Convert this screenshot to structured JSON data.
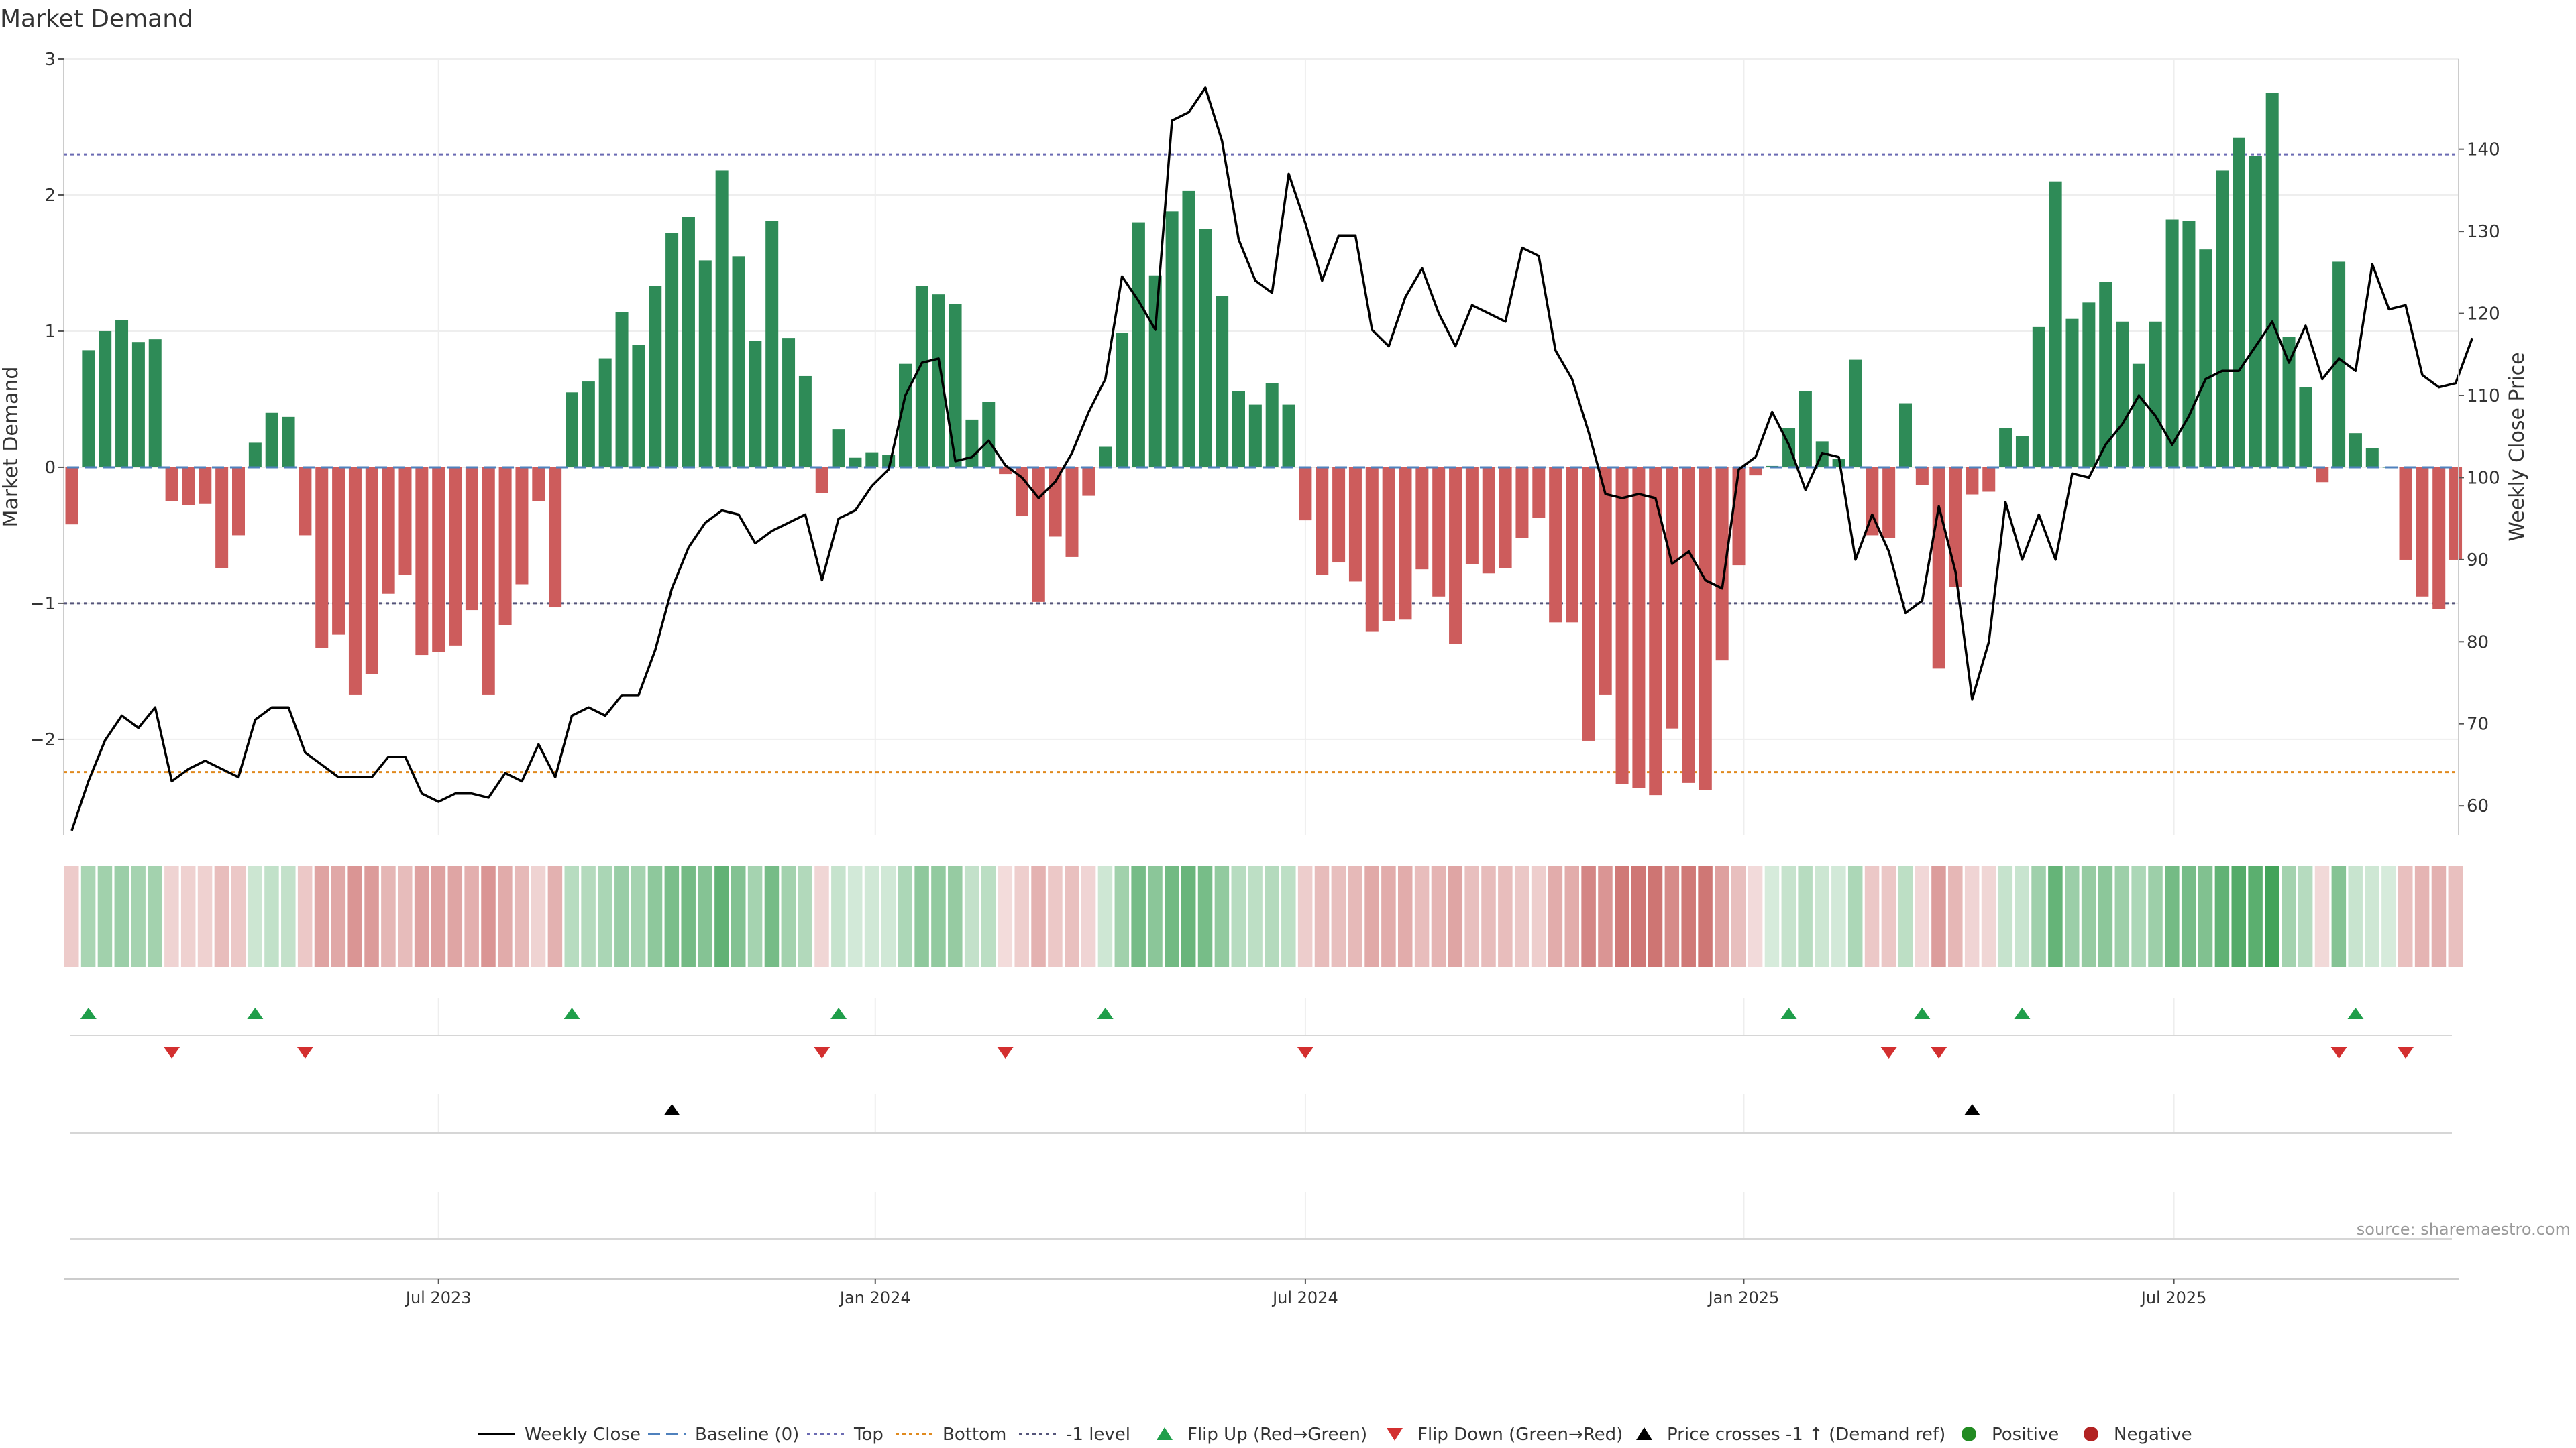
{
  "chart_data": {
    "type": "bar",
    "title": "Market Demand",
    "ylabel": "Market Demand",
    "y2label": "Weekly Close Price",
    "ylim": [
      -2.7,
      3.0
    ],
    "y2lim": [
      56.5,
      151
    ],
    "yticks": [
      3,
      2,
      1,
      0,
      -1,
      -2
    ],
    "ytick_labels": [
      "3",
      "2",
      "1",
      "0",
      "−1",
      "−2"
    ],
    "y2ticks": [
      140,
      130,
      120,
      110,
      100,
      90,
      80,
      70,
      60
    ],
    "xticks": [
      {
        "label": "Jul 2023",
        "index": 22.0
      },
      {
        "label": "Jan 2024",
        "index": 48.2
      },
      {
        "label": "Jul 2024",
        "index": 74.0
      },
      {
        "label": "Jan 2025",
        "index": 100.3
      },
      {
        "label": "Jul 2025",
        "index": 126.1
      }
    ],
    "reference_lines": {
      "top": 2.3,
      "bottom": -2.24,
      "minus_one": -1,
      "baseline": 0
    },
    "series": [
      {
        "name": "Market Demand",
        "type": "bar",
        "values": [
          -0.42,
          0.86,
          1,
          1.08,
          0.92,
          0.94,
          -0.25,
          -0.28,
          -0.27,
          -0.74,
          -0.5,
          0.18,
          0.4,
          0.37,
          -0.5,
          -1.33,
          -1.23,
          -1.67,
          -1.52,
          -0.93,
          -0.79,
          -1.38,
          -1.36,
          -1.31,
          -1.05,
          -1.67,
          -1.16,
          -0.86,
          -0.25,
          -1.03,
          0.55,
          0.63,
          0.8,
          1.14,
          0.9,
          1.33,
          1.72,
          1.84,
          1.52,
          2.18,
          1.55,
          0.93,
          1.81,
          0.95,
          0.67,
          -0.19,
          0.28,
          0.07,
          0.11,
          0.09,
          0.76,
          1.33,
          1.27,
          1.2,
          0.35,
          0.48,
          -0.05,
          -0.36,
          -0.99,
          -0.51,
          -0.66,
          -0.21,
          0.15,
          0.99,
          1.8,
          1.41,
          1.88,
          2.03,
          1.75,
          1.26,
          0.56,
          0.46,
          0.62,
          0.46,
          -0.39,
          -0.79,
          -0.7,
          -0.84,
          -1.21,
          -1.13,
          -1.12,
          -0.75,
          -0.95,
          -1.3,
          -0.71,
          -0.78,
          -0.74,
          -0.52,
          -0.37,
          -1.14,
          -1.14,
          -2.01,
          -1.67,
          -2.33,
          -2.36,
          -2.41,
          -1.92,
          -2.32,
          -2.37,
          -1.42,
          -0.72,
          -0.06,
          0.01,
          0.29,
          0.56,
          0.19,
          0.06,
          0.79,
          -0.5,
          -0.52,
          0.47,
          -0.13,
          -1.48,
          -0.88,
          -0.2,
          -0.18,
          0.29,
          0.23,
          1.03,
          2.1,
          1.09,
          1.21,
          1.36,
          1.07,
          0.76,
          1.07,
          1.82,
          1.81,
          1.6,
          2.18,
          2.42,
          2.29,
          2.75,
          0.96,
          0.59,
          -0.11,
          1.51,
          0.25,
          0.14,
          0,
          -0.68,
          -0.95,
          -1.04,
          -0.68
        ]
      },
      {
        "name": "Weekly Close",
        "type": "line",
        "values": [
          57,
          63,
          68,
          71,
          69.5,
          72,
          63,
          64.5,
          65.5,
          64.5,
          63.5,
          70.5,
          72,
          72,
          66.5,
          65,
          63.5,
          63.5,
          63.5,
          66,
          66,
          61.5,
          60.5,
          61.5,
          61.5,
          61,
          64,
          63,
          67.5,
          63.5,
          71,
          72,
          71,
          73.5,
          73.5,
          79,
          86.5,
          91.5,
          94.5,
          96,
          95.5,
          92,
          93.5,
          94.5,
          95.5,
          87.5,
          95,
          96,
          99,
          101,
          110,
          114,
          114.5,
          102,
          102.5,
          104.5,
          101.5,
          100,
          97.5,
          99.5,
          103,
          108,
          112,
          124.5,
          121.5,
          118,
          143.5,
          144.5,
          147.5,
          141,
          129,
          124,
          122.5,
          137,
          131,
          124,
          129.5,
          129.5,
          118,
          116,
          122,
          125.5,
          120,
          116,
          121,
          120,
          119,
          128,
          127,
          115.5,
          112,
          105.5,
          98,
          97.5,
          98,
          97.5,
          89.5,
          91,
          87.5,
          86.5,
          101,
          102.5,
          108,
          104,
          98.5,
          103,
          102.5,
          90,
          95.5,
          91,
          83.5,
          85,
          96.5,
          88.5,
          73,
          80,
          97,
          90,
          95.5,
          90,
          100.5,
          100,
          104,
          106.5,
          110,
          107.5,
          104,
          107.5,
          112,
          113,
          113,
          116,
          119,
          114,
          118.5,
          112,
          114.5,
          113,
          126,
          120.5,
          121,
          112.5,
          111,
          111.5,
          117
        ]
      },
      {
        "name": "Flip Up (Red→Green)",
        "type": "marker",
        "indices": [
          1,
          11,
          30,
          46,
          62,
          103,
          111,
          117,
          137
        ]
      },
      {
        "name": "Flip Down (Green→Red)",
        "type": "marker",
        "indices": [
          6,
          14,
          45,
          56,
          74,
          109,
          112,
          136,
          140
        ]
      },
      {
        "name": "Price crosses -1 ↑ (Demand ref)",
        "type": "marker",
        "indices": [
          36,
          114
        ]
      }
    ],
    "legend": {
      "position": "bottom",
      "entries": [
        "Weekly Close",
        "Baseline (0)",
        "Top",
        "Bottom",
        "-1 level",
        "Flip Up (Red→Green)",
        "Flip Down (Green→Red)",
        "Price crosses -1 ↑ (Demand ref)",
        "Positive",
        "Negative"
      ]
    },
    "source": "source: sharemaestro.com"
  },
  "colors": {
    "positive": "#2e8b57",
    "negative": "#cd5c5c",
    "price_line": "#000000",
    "baseline": "#4f81bd",
    "top_line": "#6b6bb3",
    "bottom_line": "#e08a1e",
    "minus_one_line": "#55557a",
    "flip_up": "#1f9e4a",
    "flip_down": "#d32f2f",
    "cross_marker": "#000000",
    "positive_dot": "#228b22",
    "negative_dot": "#b22222",
    "text": "#333333",
    "grid": "#eeeeee",
    "axis": "#cccccc"
  }
}
